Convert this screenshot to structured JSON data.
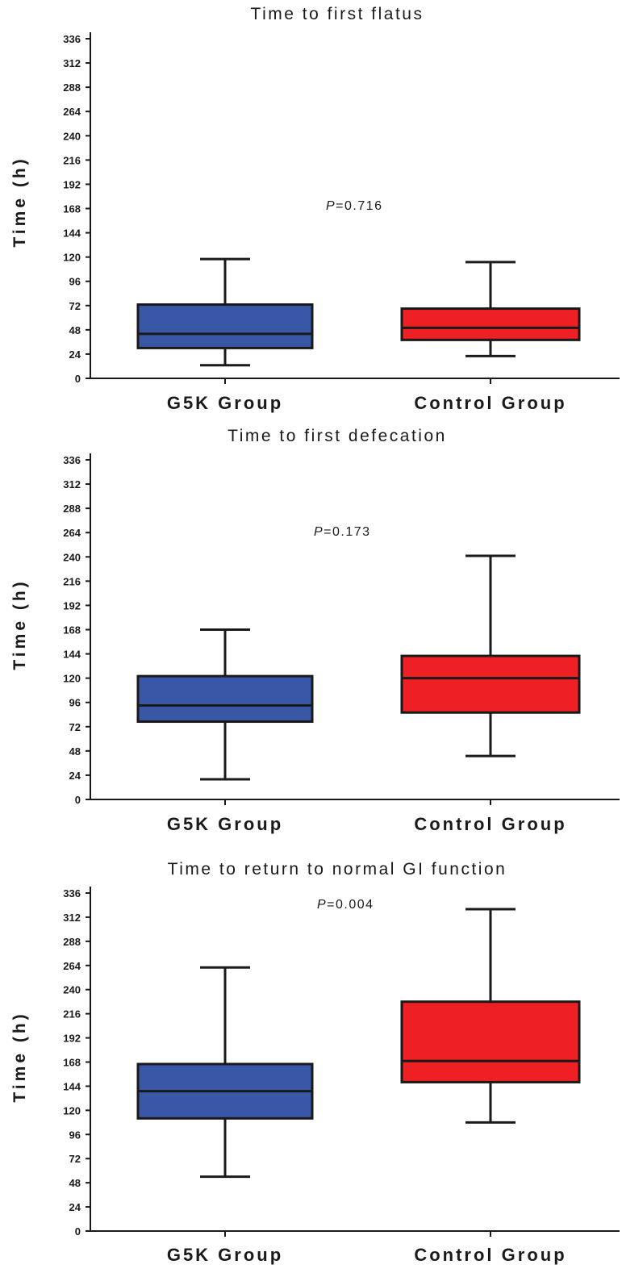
{
  "chart_data": [
    {
      "type": "box",
      "title": "Time to first flatus",
      "ylabel": "Time (h)",
      "ylim": [
        0,
        336
      ],
      "yticks": [
        0,
        24,
        48,
        72,
        96,
        120,
        144,
        168,
        192,
        216,
        240,
        264,
        288,
        312,
        336
      ],
      "annotation": {
        "prefix": "P",
        "text": "=0.716"
      },
      "series": [
        {
          "name": "G5K Group",
          "color": "#3A56A6",
          "whisker_low": 13,
          "q1": 30,
          "median": 44,
          "q3": 73,
          "whisker_high": 118
        },
        {
          "name": "Control Group",
          "color": "#EE2024",
          "whisker_low": 22,
          "q1": 38,
          "median": 50,
          "q3": 69,
          "whisker_high": 115
        }
      ]
    },
    {
      "type": "box",
      "title": "Time to first defecation",
      "ylabel": "Time (h)",
      "ylim": [
        0,
        336
      ],
      "yticks": [
        0,
        24,
        48,
        72,
        96,
        120,
        144,
        168,
        192,
        216,
        240,
        264,
        288,
        312,
        336
      ],
      "annotation": {
        "prefix": "P",
        "text": "=0.173"
      },
      "series": [
        {
          "name": "G5K Group",
          "color": "#3A56A6",
          "whisker_low": 20,
          "q1": 77,
          "median": 93,
          "q3": 122,
          "whisker_high": 168
        },
        {
          "name": "Control Group",
          "color": "#EE2024",
          "whisker_low": 43,
          "q1": 86,
          "median": 120,
          "q3": 142,
          "whisker_high": 241
        }
      ]
    },
    {
      "type": "box",
      "title": "Time to return to normal GI function",
      "ylabel": "Time (h)",
      "ylim": [
        0,
        336
      ],
      "yticks": [
        0,
        24,
        48,
        72,
        96,
        120,
        144,
        168,
        192,
        216,
        240,
        264,
        288,
        312,
        336
      ],
      "annotation": {
        "prefix": "P",
        "text": "=0.004"
      },
      "series": [
        {
          "name": "G5K Group",
          "color": "#3A56A6",
          "whisker_low": 54,
          "q1": 112,
          "median": 139,
          "q3": 166,
          "whisker_high": 262
        },
        {
          "name": "Control Group",
          "color": "#EE2024",
          "whisker_low": 108,
          "q1": 148,
          "median": 169,
          "q3": 228,
          "whisker_high": 320
        }
      ]
    }
  ]
}
